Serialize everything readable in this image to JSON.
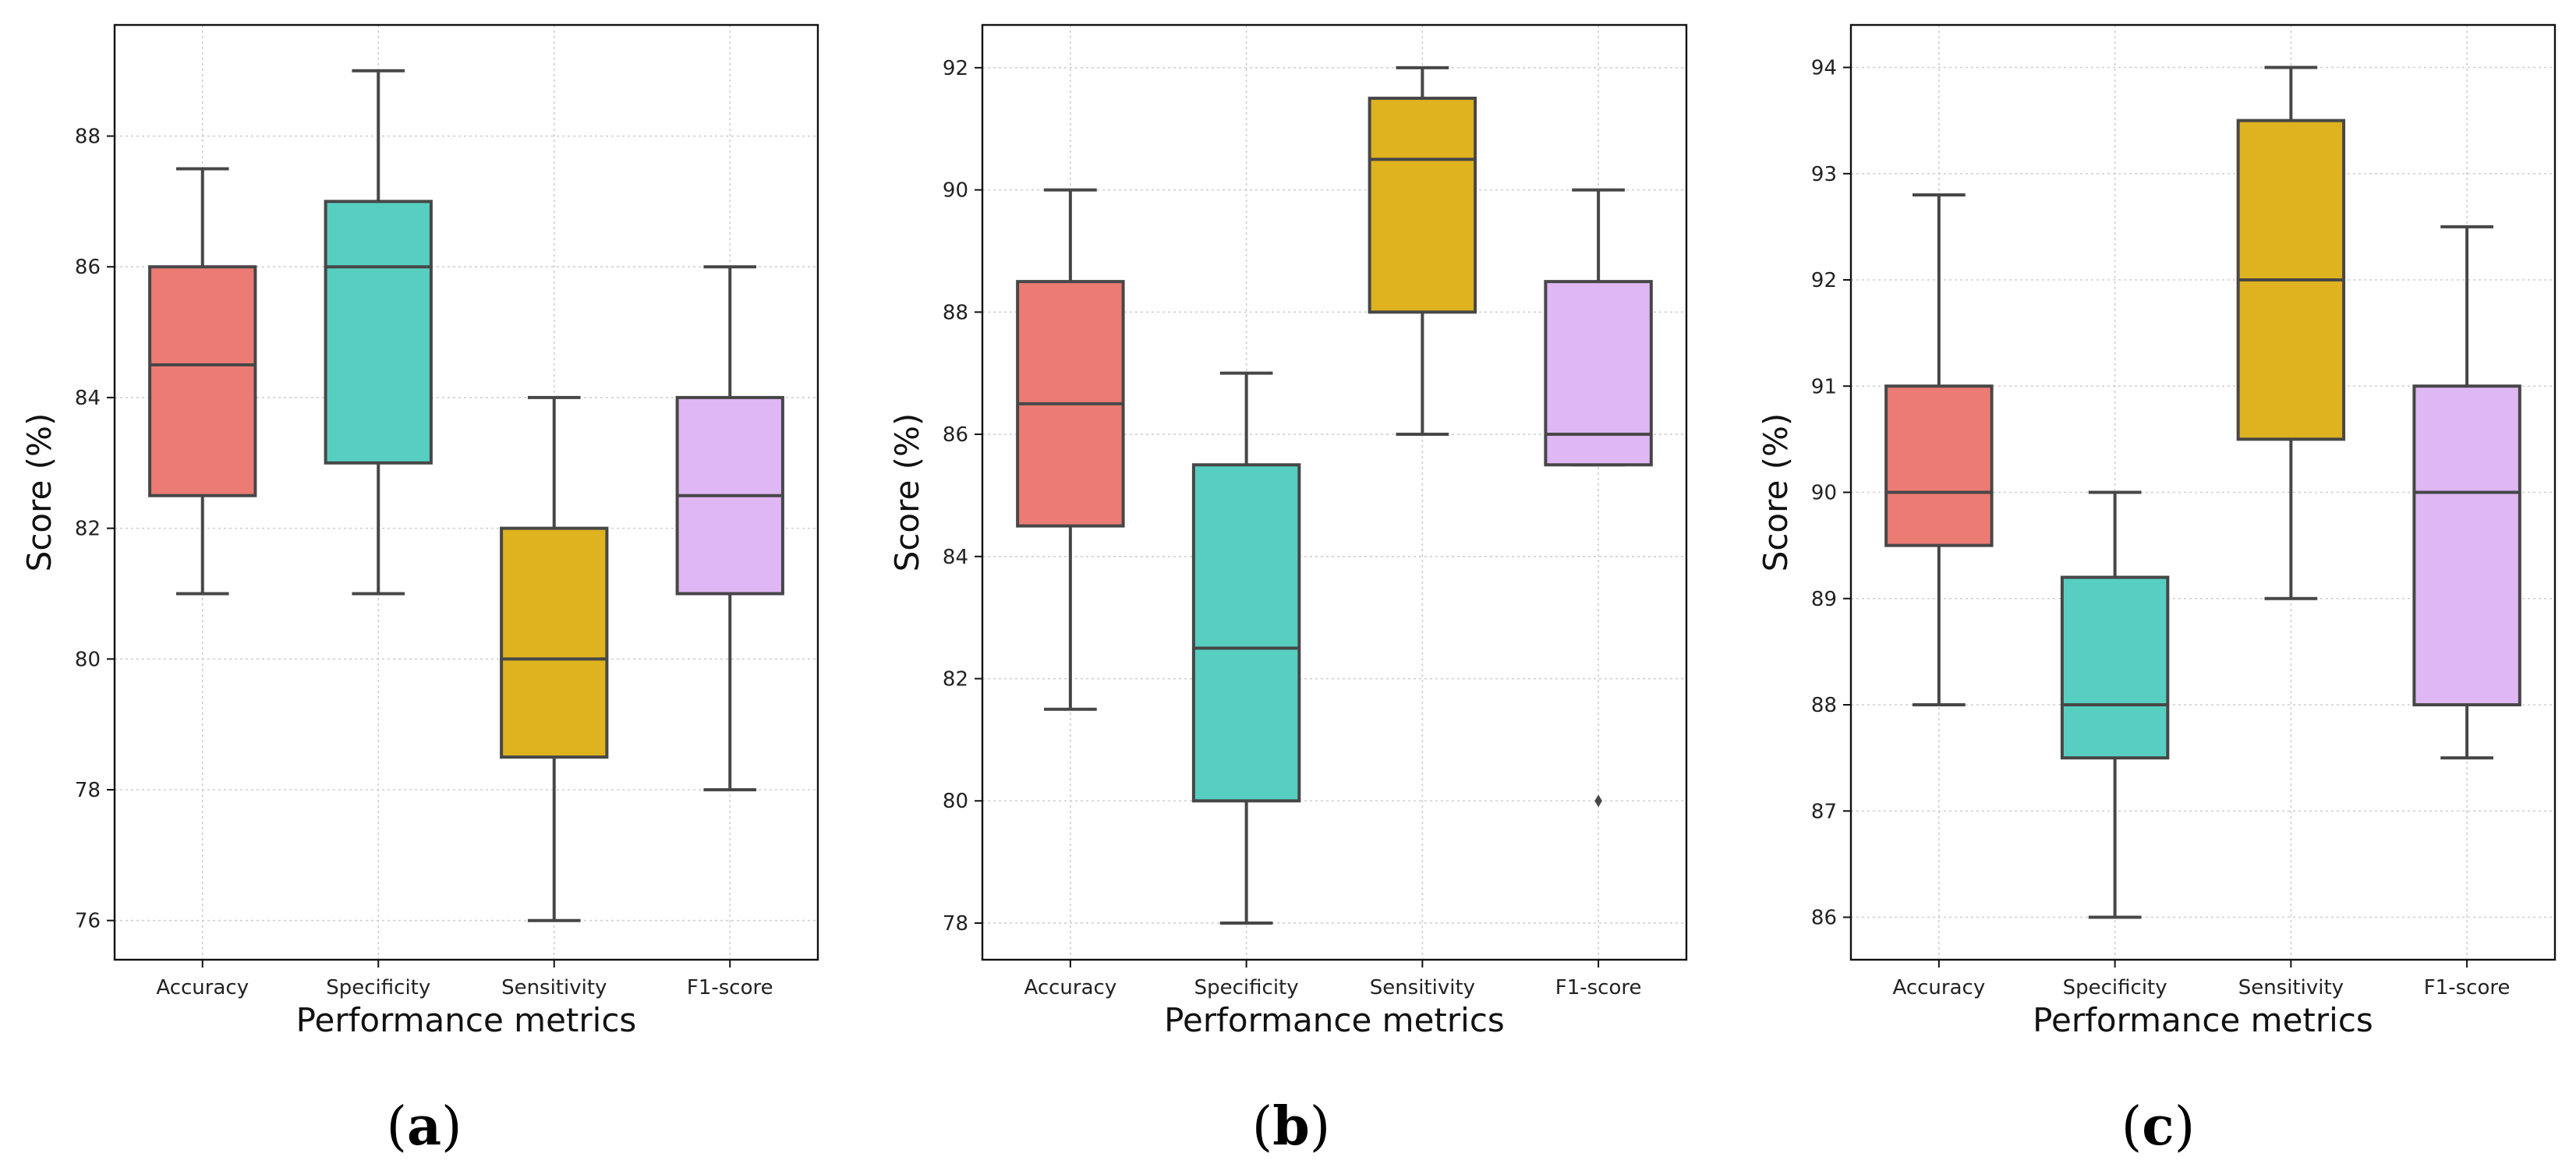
{
  "colors": {
    "Accuracy": "#ec7b74",
    "Specificity": "#56cfc1",
    "Sensitivity": "#dfb21f",
    "F1-score": "#dfb7f4",
    "box_line": "#474747",
    "grid": "#cfcfcf",
    "frame": "#111111"
  },
  "chart_data": [
    {
      "type": "box",
      "panel": "a",
      "panel_label": "(a)",
      "xlabel": "Performance metrics",
      "ylabel": "Score (%)",
      "ylim": [
        75.4,
        89.7
      ],
      "yticks": [
        76,
        78,
        80,
        82,
        84,
        86,
        88
      ],
      "grid": true,
      "categories": [
        "Accuracy",
        "Specificity",
        "Sensitivity",
        "F1-score"
      ],
      "boxes": [
        {
          "category": "Accuracy",
          "whisker_low": 81,
          "q1": 82.5,
          "median": 84.5,
          "q3": 86,
          "whisker_high": 87.5,
          "outliers": []
        },
        {
          "category": "Specificity",
          "whisker_low": 81,
          "q1": 83,
          "median": 86,
          "q3": 87,
          "whisker_high": 89,
          "outliers": []
        },
        {
          "category": "Sensitivity",
          "whisker_low": 76,
          "q1": 78.5,
          "median": 80,
          "q3": 82,
          "whisker_high": 84,
          "outliers": []
        },
        {
          "category": "F1-score",
          "whisker_low": 78,
          "q1": 81,
          "median": 82.5,
          "q3": 84,
          "whisker_high": 86,
          "outliers": []
        }
      ]
    },
    {
      "type": "box",
      "panel": "b",
      "panel_label": "(b)",
      "xlabel": "Performance metrics",
      "ylabel": "Score (%)",
      "ylim": [
        77.4,
        92.7
      ],
      "yticks": [
        78,
        80,
        82,
        84,
        86,
        88,
        90,
        92
      ],
      "grid": true,
      "categories": [
        "Accuracy",
        "Specificity",
        "Sensitivity",
        "F1-score"
      ],
      "boxes": [
        {
          "category": "Accuracy",
          "whisker_low": 81.5,
          "q1": 84.5,
          "median": 86.5,
          "q3": 88.5,
          "whisker_high": 90,
          "outliers": []
        },
        {
          "category": "Specificity",
          "whisker_low": 78,
          "q1": 80,
          "median": 82.5,
          "q3": 85.5,
          "whisker_high": 87,
          "outliers": []
        },
        {
          "category": "Sensitivity",
          "whisker_low": 86,
          "q1": 88,
          "median": 90.5,
          "q3": 91.5,
          "whisker_high": 92,
          "outliers": []
        },
        {
          "category": "F1-score",
          "whisker_low": 85.5,
          "q1": 85.5,
          "median": 86,
          "q3": 88.5,
          "whisker_high": 90,
          "outliers": [
            80
          ]
        }
      ]
    },
    {
      "type": "box",
      "panel": "c",
      "panel_label": "(c)",
      "xlabel": "Performance metrics",
      "ylabel": "Score (%)",
      "ylim": [
        85.6,
        94.4
      ],
      "yticks": [
        86,
        87,
        88,
        89,
        90,
        91,
        92,
        93,
        94
      ],
      "grid": true,
      "categories": [
        "Accuracy",
        "Specificity",
        "Sensitivity",
        "F1-score"
      ],
      "boxes": [
        {
          "category": "Accuracy",
          "whisker_low": 88,
          "q1": 89.5,
          "median": 90,
          "q3": 91,
          "whisker_high": 92.8,
          "outliers": []
        },
        {
          "category": "Specificity",
          "whisker_low": 86,
          "q1": 87.5,
          "median": 88,
          "q3": 89.2,
          "whisker_high": 90,
          "outliers": []
        },
        {
          "category": "Sensitivity",
          "whisker_low": 89,
          "q1": 90.5,
          "median": 92,
          "q3": 93.5,
          "whisker_high": 94,
          "outliers": []
        },
        {
          "category": "F1-score",
          "whisker_low": 87.5,
          "q1": 88,
          "median": 90,
          "q3": 91,
          "whisker_high": 92.5,
          "outliers": []
        }
      ]
    }
  ]
}
